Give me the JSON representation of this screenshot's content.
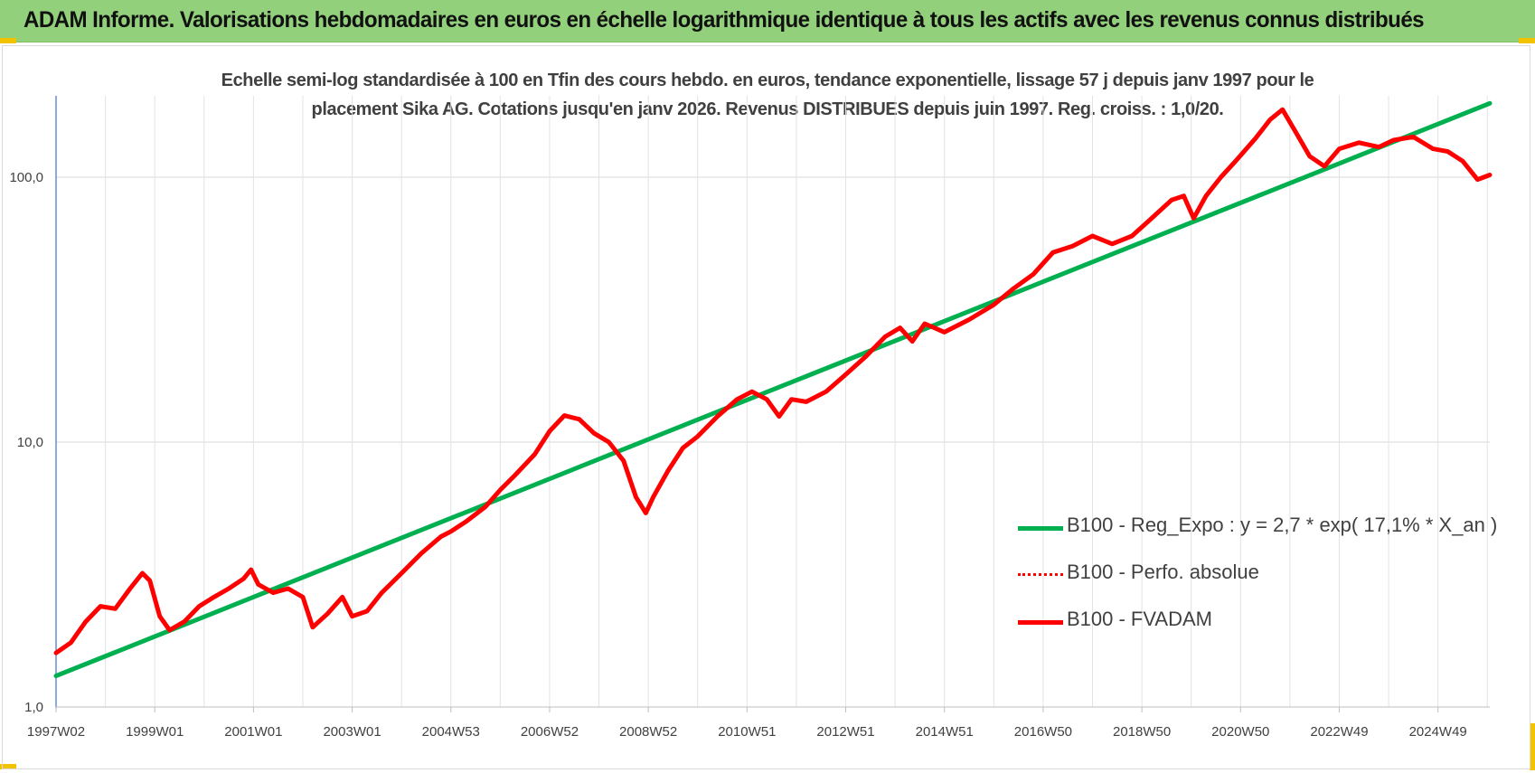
{
  "banner": {
    "title": "ADAM Informe. Valorisations hebdomadaires en euros en échelle logarithmique identique à tous les actifs avec les revenus connus distribués"
  },
  "chart_data": {
    "type": "line",
    "subtitle_line1": "Echelle semi-log standardisée à 100 en Tfin des cours hebdo. en euros, tendance exponentielle, lissage 57 j depuis janv 1997 pour le",
    "subtitle_line2": "placement Sika AG. Cotations jusqu'en janv 2026. Revenus DISTRIBUES depuis juin 1997. Reg. croiss. : 1,0/20.",
    "y_scale": "log",
    "ylim": [
      1,
      200
    ],
    "y_ticks": [
      "1,0",
      "10,0",
      "100,0"
    ],
    "x_tick_labels": [
      "1997W02",
      "1999W01",
      "2001W01",
      "2003W01",
      "2004W53",
      "2006W52",
      "2008W52",
      "2010W51",
      "2012W51",
      "2014W51",
      "2016W50",
      "2018W50",
      "2020W50",
      "2022W49",
      "2024W49"
    ],
    "xlim": [
      1997.0,
      2026.05
    ],
    "grid": true,
    "legend_position": "lower-right",
    "series": [
      {
        "name": "B100 - Reg_Expo : y = 2,7 * exp( 17,1% *  X_an )",
        "color": "#00b050",
        "style": "solid",
        "points": [
          [
            1997.0,
            1.31
          ],
          [
            2026.05,
            190
          ]
        ]
      },
      {
        "name": "B100 - Perfo. absolue",
        "color": "#ff0000",
        "style": "dotted",
        "points": []
      },
      {
        "name": "B100 - FVADAM",
        "color": "#ff0000",
        "style": "solid",
        "points": [
          [
            1997.0,
            1.6
          ],
          [
            1997.3,
            1.75
          ],
          [
            1997.6,
            2.1
          ],
          [
            1997.9,
            2.4
          ],
          [
            1998.2,
            2.35
          ],
          [
            1998.5,
            2.8
          ],
          [
            1998.75,
            3.2
          ],
          [
            1998.9,
            3.0
          ],
          [
            1999.1,
            2.2
          ],
          [
            1999.3,
            1.95
          ],
          [
            1999.6,
            2.1
          ],
          [
            1999.9,
            2.4
          ],
          [
            2000.2,
            2.6
          ],
          [
            2000.5,
            2.8
          ],
          [
            2000.8,
            3.05
          ],
          [
            2000.95,
            3.3
          ],
          [
            2001.1,
            2.9
          ],
          [
            2001.4,
            2.7
          ],
          [
            2001.7,
            2.8
          ],
          [
            2002.0,
            2.6
          ],
          [
            2002.2,
            2.0
          ],
          [
            2002.5,
            2.25
          ],
          [
            2002.8,
            2.6
          ],
          [
            2003.0,
            2.2
          ],
          [
            2003.3,
            2.3
          ],
          [
            2003.6,
            2.7
          ],
          [
            2004.0,
            3.2
          ],
          [
            2004.4,
            3.8
          ],
          [
            2004.8,
            4.4
          ],
          [
            2005.0,
            4.6
          ],
          [
            2005.3,
            5.0
          ],
          [
            2005.7,
            5.7
          ],
          [
            2006.0,
            6.6
          ],
          [
            2006.3,
            7.5
          ],
          [
            2006.7,
            9.0
          ],
          [
            2007.0,
            11.0
          ],
          [
            2007.3,
            12.6
          ],
          [
            2007.6,
            12.2
          ],
          [
            2007.9,
            10.8
          ],
          [
            2008.2,
            10.0
          ],
          [
            2008.5,
            8.5
          ],
          [
            2008.75,
            6.2
          ],
          [
            2008.95,
            5.4
          ],
          [
            2009.1,
            6.2
          ],
          [
            2009.4,
            7.8
          ],
          [
            2009.7,
            9.5
          ],
          [
            2010.0,
            10.5
          ],
          [
            2010.4,
            12.5
          ],
          [
            2010.8,
            14.5
          ],
          [
            2011.1,
            15.5
          ],
          [
            2011.4,
            14.5
          ],
          [
            2011.65,
            12.5
          ],
          [
            2011.9,
            14.5
          ],
          [
            2012.2,
            14.2
          ],
          [
            2012.6,
            15.5
          ],
          [
            2013.0,
            18.0
          ],
          [
            2013.4,
            21.0
          ],
          [
            2013.8,
            25.0
          ],
          [
            2014.1,
            27.0
          ],
          [
            2014.35,
            24.0
          ],
          [
            2014.6,
            28.0
          ],
          [
            2015.0,
            26.0
          ],
          [
            2015.5,
            29.0
          ],
          [
            2016.0,
            33.0
          ],
          [
            2016.4,
            38.0
          ],
          [
            2016.8,
            43.0
          ],
          [
            2017.2,
            52.0
          ],
          [
            2017.6,
            55.0
          ],
          [
            2018.0,
            60.0
          ],
          [
            2018.4,
            56.0
          ],
          [
            2018.8,
            60.0
          ],
          [
            2019.2,
            70.0
          ],
          [
            2019.6,
            82.0
          ],
          [
            2019.85,
            85.0
          ],
          [
            2020.05,
            70.0
          ],
          [
            2020.3,
            85.0
          ],
          [
            2020.6,
            100.0
          ],
          [
            2020.9,
            115.0
          ],
          [
            2021.3,
            140.0
          ],
          [
            2021.6,
            165.0
          ],
          [
            2021.85,
            180.0
          ],
          [
            2022.1,
            150.0
          ],
          [
            2022.4,
            120.0
          ],
          [
            2022.7,
            110.0
          ],
          [
            2023.0,
            128.0
          ],
          [
            2023.4,
            135.0
          ],
          [
            2023.8,
            130.0
          ],
          [
            2024.1,
            138.0
          ],
          [
            2024.5,
            142.0
          ],
          [
            2024.9,
            128.0
          ],
          [
            2025.2,
            125.0
          ],
          [
            2025.5,
            115.0
          ],
          [
            2025.8,
            98.0
          ],
          [
            2026.05,
            102.0
          ]
        ]
      }
    ]
  }
}
